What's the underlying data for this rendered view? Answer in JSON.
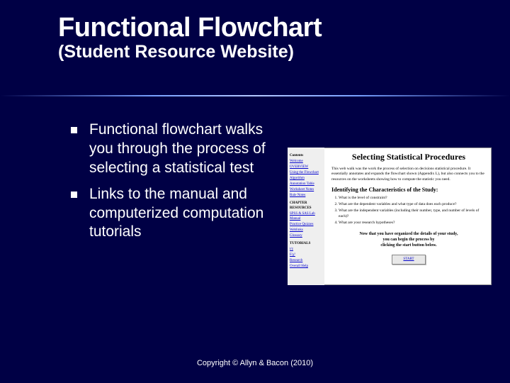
{
  "colors": {
    "background": "#000045",
    "text": "#ffffff",
    "thumb_bg": "#ffffff",
    "thumb_sidebar_bg": "#efefef",
    "link": "#0000cc"
  },
  "title": "Functional Flowchart",
  "subtitle": "(Student Resource Website)",
  "bullets": [
    "Functional flowchart walks you through the process of selecting a statistical test",
    "Links to the manual and computerized computation tutorials"
  ],
  "thumb": {
    "sidebar": {
      "heading1": "Contents",
      "links1": [
        "Welcome",
        "OVERVIEW",
        "Using the Flowchart",
        "Algorithm",
        "Annotation Table",
        "Worksheet Notes",
        "Rule Notes"
      ],
      "heading2": "CHAPTER RESOURCES",
      "links2": [
        "SPSS & SAS Lab Manual",
        "Practice Quizzes",
        "Weblinks",
        "Glossary"
      ],
      "heading3": "TUTORIALS",
      "links3": [
        "t/z",
        "F/χ²",
        "Research",
        "Overall Help"
      ]
    },
    "main": {
      "title": "Selecting Statistical Procedures",
      "para": "This web walk was the work the process of selection on decisions statistical procedure. It essentially annotates and expands the flowchart shown (Appendix L), but also connects you to the resources on the worksheets showing how to compute the statistic you need.",
      "h2": "Identifying the Characteristics of the Study:",
      "list": [
        "What is the level of constraint?",
        "What are the dependent variables and what type of data does each produce?",
        "What are the independent variables (including their number, type, and number of levels of each)?",
        "What are your research hypotheses?"
      ],
      "center1": "Now that you have organized the details of your study,",
      "center2": "you can begin the process by",
      "center3": "clicking the start button below.",
      "button": "START"
    }
  },
  "copyright": "Copyright © Allyn & Bacon (2010)"
}
